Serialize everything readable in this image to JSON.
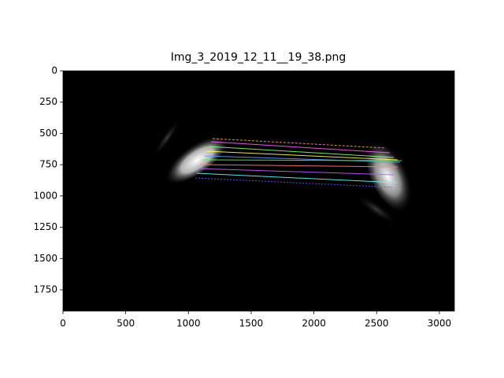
{
  "chart_data": {
    "type": "image",
    "title": "Img_3_2019_12_11__19_38.png",
    "xlim": [
      0,
      3120
    ],
    "xticks": [
      0,
      500,
      1000,
      1500,
      2000,
      2500,
      3000
    ],
    "ylim": [
      1920,
      0
    ],
    "yticks": [
      0,
      250,
      500,
      750,
      1000,
      1250,
      1500,
      1750
    ]
  }
}
